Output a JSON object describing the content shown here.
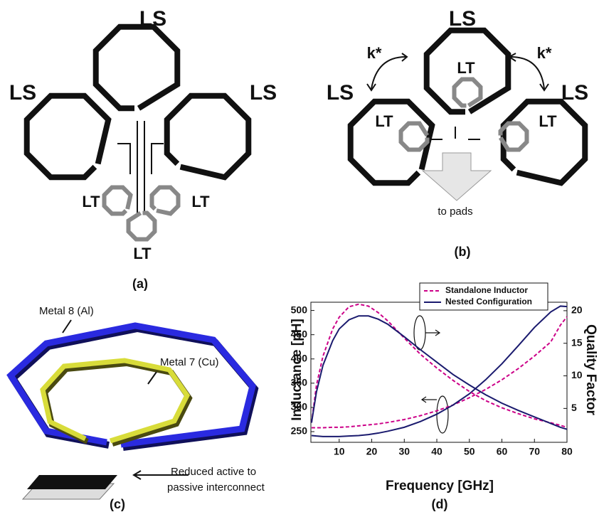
{
  "panels": {
    "a": {
      "label": "(a)",
      "ls": [
        "LS",
        "LS",
        "LS"
      ],
      "lt": [
        "LT",
        "LT",
        "LT"
      ]
    },
    "b": {
      "label": "(b)",
      "ls": [
        "LS",
        "LS",
        "LS"
      ],
      "lt": [
        "LT",
        "LT",
        "LT"
      ],
      "k": [
        "k*",
        "k*"
      ],
      "pads": "to pads"
    },
    "c": {
      "label": "(c)",
      "metal8": "Metal 8 (Al)",
      "metal7": "Metal 7 (Cu)",
      "note": [
        "Reduced active to",
        "passive interconnect"
      ]
    },
    "d": {
      "label": "(d)"
    }
  },
  "chart_data": {
    "type": "line",
    "xlabel": "Frequency [GHz]",
    "ylabel": "Inductance [pH]",
    "y2label": "Quality Factor",
    "x": [
      1.5,
      3,
      5,
      8,
      10,
      13,
      16,
      19,
      22,
      25,
      30,
      35,
      40,
      45,
      50,
      55,
      60,
      65,
      70,
      75,
      78,
      80
    ],
    "series": [
      {
        "name": "Standalone Inductor",
        "color": "#cc0088",
        "dash": true,
        "values": [
          258,
          258,
          258,
          259,
          259,
          260,
          262,
          264,
          266,
          269,
          275,
          283,
          293,
          305,
          320,
          337,
          357,
          380,
          406,
          435,
          470,
          487
        ]
      },
      {
        "name": "Nested Configuration",
        "color": "#1a1a6e",
        "dash": false,
        "values": [
          242,
          241,
          240,
          240,
          240,
          241,
          242,
          244,
          247,
          251,
          259,
          271,
          286,
          305,
          328,
          357,
          390,
          427,
          465,
          497,
          509,
          508
        ]
      },
      {
        "name": "Standalone Inductor",
        "color": "#cc0088",
        "dash": true,
        "axis": "y2",
        "values": [
          2.8,
          8.5,
          13,
          17.2,
          19,
          20.6,
          21,
          20.7,
          19.7,
          18.4,
          15.8,
          13.3,
          11.2,
          9.3,
          7.6,
          6.2,
          5.1,
          4.2,
          3.4,
          2.8,
          2.4,
          2.1
        ]
      },
      {
        "name": "Nested Configuration",
        "color": "#1a1a6e",
        "dash": false,
        "axis": "y2",
        "values": [
          2.8,
          7.5,
          11.6,
          15.4,
          17.2,
          18.6,
          19.2,
          19.2,
          18.7,
          17.9,
          16,
          14,
          12.1,
          10.2,
          8.6,
          7.1,
          5.8,
          4.7,
          3.7,
          2.7,
          2.1,
          1.8
        ]
      }
    ],
    "xlim": [
      1.3,
      80
    ],
    "ylim": [
      228,
      517
    ],
    "y2lim": [
      -0.2,
      21.3
    ],
    "xticks": [
      10,
      20,
      30,
      40,
      50,
      60,
      70,
      80
    ],
    "yticks": [
      250,
      300,
      350,
      400,
      450,
      500
    ],
    "y2ticks": [
      5,
      10,
      15,
      20
    ],
    "legend": "top"
  }
}
